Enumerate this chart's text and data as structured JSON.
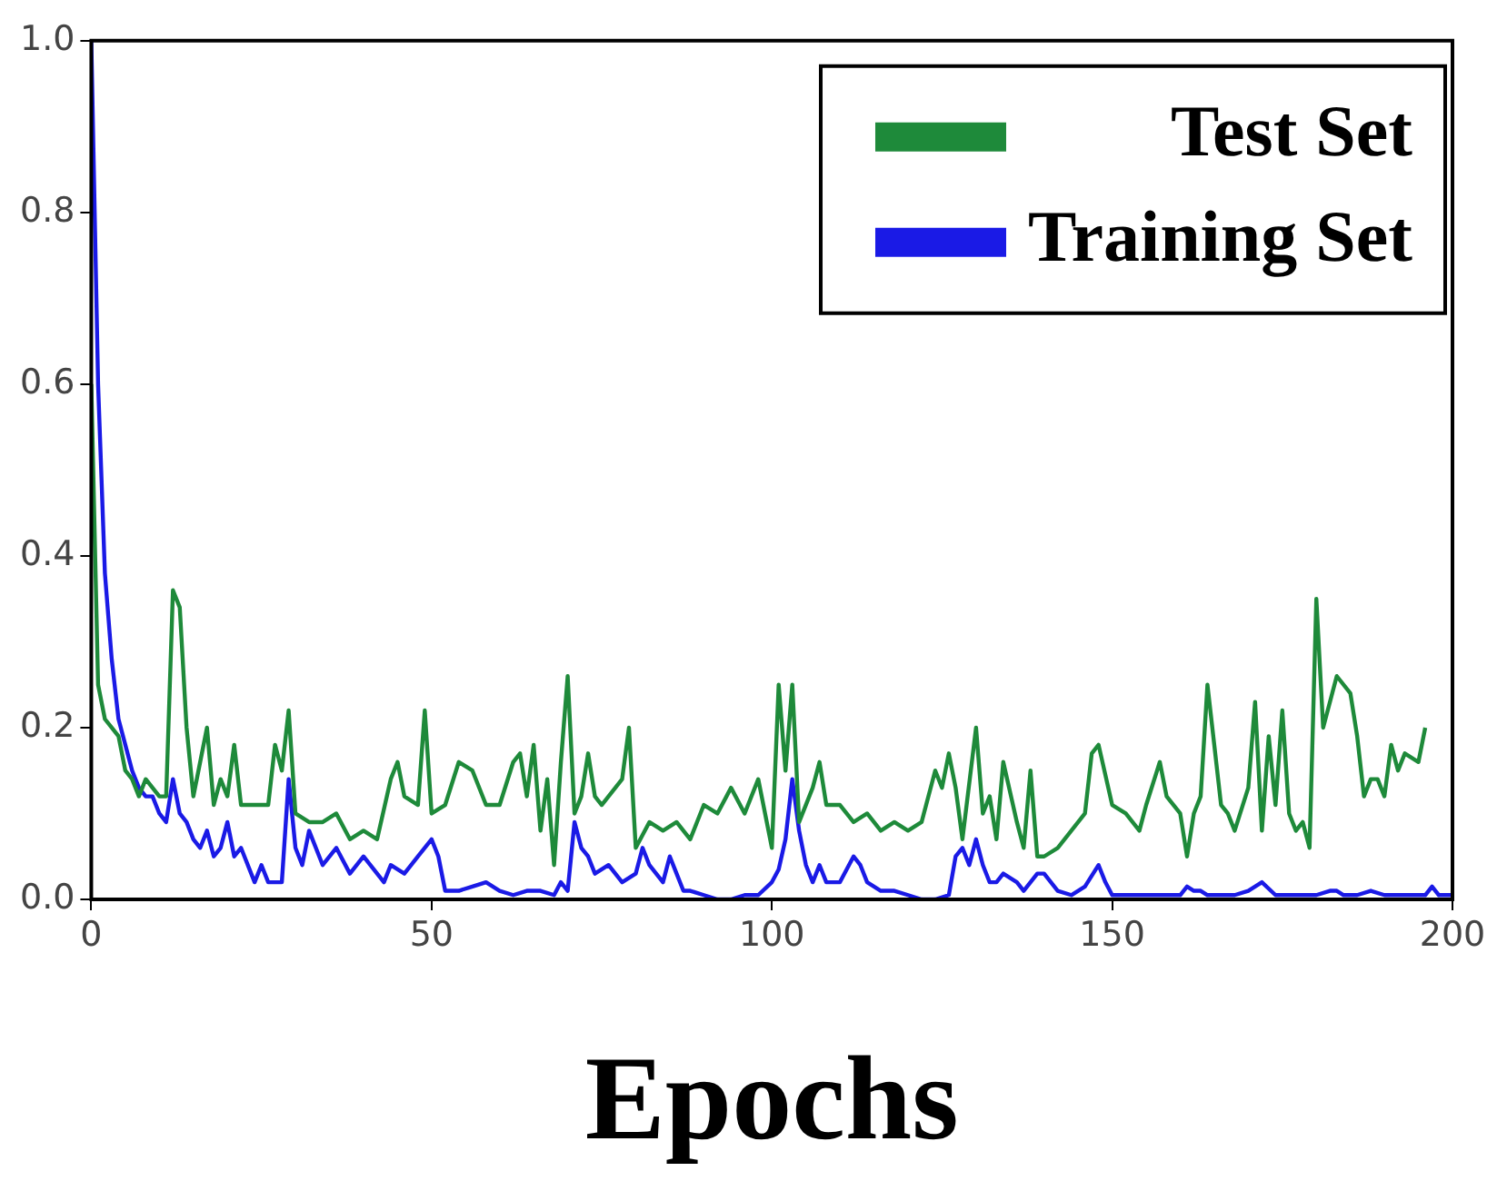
{
  "chart_data": {
    "type": "line",
    "xlabel": "Epochs",
    "xlim": [
      0,
      200
    ],
    "xticks": [
      0,
      50,
      100,
      150,
      200
    ],
    "ylim": [
      0,
      1.0
    ],
    "yticks": [
      {
        "value": 0,
        "label": "0.0"
      },
      {
        "value": 0.2,
        "label": "0.2"
      },
      {
        "value": 0.4,
        "label": "0.4"
      },
      {
        "value": 0.6,
        "label": "0.6"
      },
      {
        "value": 0.8,
        "label": "0.8"
      },
      {
        "value": 1.0,
        "label": "1.0"
      }
    ],
    "grid": false,
    "legend": "top right",
    "marker": "none",
    "line_style": "solid",
    "series": [
      {
        "name": "Test Set",
        "color": "#1e8a3a",
        "x": [
          0,
          1,
          2,
          3,
          4,
          5,
          6,
          7,
          8,
          9,
          10,
          11,
          12,
          13,
          14,
          15,
          16,
          17,
          18,
          19,
          20,
          21,
          22,
          24,
          26,
          27,
          28,
          29,
          30,
          32,
          34,
          36,
          38,
          40,
          42,
          44,
          45,
          46,
          48,
          49,
          50,
          52,
          54,
          56,
          58,
          60,
          62,
          63,
          64,
          65,
          66,
          67,
          68,
          69,
          70,
          71,
          72,
          73,
          74,
          75,
          76,
          78,
          79,
          80,
          82,
          84,
          86,
          88,
          90,
          92,
          94,
          96,
          98,
          100,
          101,
          102,
          103,
          104,
          106,
          107,
          108,
          110,
          112,
          114,
          116,
          118,
          120,
          122,
          124,
          125,
          126,
          127,
          128,
          130,
          131,
          132,
          133,
          134,
          136,
          137,
          138,
          139,
          140,
          142,
          144,
          146,
          147,
          148,
          150,
          152,
          154,
          155,
          157,
          158,
          160,
          161,
          162,
          163,
          164,
          166,
          167,
          168,
          170,
          171,
          172,
          173,
          174,
          175,
          176,
          177,
          178,
          179,
          180,
          181,
          183,
          185,
          186,
          187,
          188,
          189,
          190,
          191,
          192,
          193,
          195,
          196
        ],
        "values": [
          0.6,
          0.25,
          0.21,
          0.2,
          0.19,
          0.15,
          0.14,
          0.12,
          0.14,
          0.13,
          0.12,
          0.12,
          0.36,
          0.34,
          0.2,
          0.12,
          0.16,
          0.2,
          0.11,
          0.14,
          0.12,
          0.18,
          0.11,
          0.11,
          0.11,
          0.18,
          0.15,
          0.22,
          0.1,
          0.09,
          0.09,
          0.1,
          0.07,
          0.08,
          0.07,
          0.14,
          0.16,
          0.12,
          0.11,
          0.22,
          0.1,
          0.11,
          0.16,
          0.15,
          0.11,
          0.11,
          0.16,
          0.17,
          0.12,
          0.18,
          0.08,
          0.14,
          0.04,
          0.16,
          0.26,
          0.1,
          0.12,
          0.17,
          0.12,
          0.11,
          0.12,
          0.14,
          0.2,
          0.06,
          0.09,
          0.08,
          0.09,
          0.07,
          0.11,
          0.1,
          0.13,
          0.1,
          0.14,
          0.06,
          0.25,
          0.15,
          0.25,
          0.09,
          0.13,
          0.16,
          0.11,
          0.11,
          0.09,
          0.1,
          0.08,
          0.09,
          0.08,
          0.09,
          0.15,
          0.13,
          0.17,
          0.13,
          0.07,
          0.2,
          0.1,
          0.12,
          0.07,
          0.16,
          0.09,
          0.06,
          0.15,
          0.05,
          0.05,
          0.06,
          0.08,
          0.1,
          0.17,
          0.18,
          0.11,
          0.1,
          0.08,
          0.11,
          0.16,
          0.12,
          0.1,
          0.05,
          0.1,
          0.12,
          0.25,
          0.11,
          0.1,
          0.08,
          0.13,
          0.23,
          0.08,
          0.19,
          0.11,
          0.22,
          0.1,
          0.08,
          0.09,
          0.06,
          0.35,
          0.2,
          0.26,
          0.24,
          0.19,
          0.12,
          0.14,
          0.14,
          0.12,
          0.18,
          0.15,
          0.17,
          0.16,
          0.2
        ]
      },
      {
        "name": "Training Set",
        "color": "#1a1ae6",
        "x": [
          0,
          1,
          2,
          3,
          4,
          5,
          6,
          7,
          8,
          9,
          10,
          11,
          12,
          13,
          14,
          15,
          16,
          17,
          18,
          19,
          20,
          21,
          22,
          24,
          25,
          26,
          28,
          29,
          30,
          31,
          32,
          34,
          36,
          38,
          40,
          42,
          43,
          44,
          46,
          48,
          50,
          51,
          52,
          54,
          56,
          58,
          60,
          62,
          64,
          66,
          68,
          69,
          70,
          71,
          72,
          73,
          74,
          76,
          78,
          80,
          81,
          82,
          84,
          85,
          86,
          87,
          88,
          90,
          92,
          94,
          96,
          98,
          100,
          101,
          102,
          103,
          104,
          105,
          106,
          107,
          108,
          110,
          112,
          113,
          114,
          116,
          118,
          120,
          122,
          124,
          126,
          127,
          128,
          129,
          130,
          131,
          132,
          133,
          134,
          136,
          137,
          139,
          140,
          142,
          144,
          146,
          148,
          149,
          150,
          152,
          156,
          158,
          160,
          161,
          162,
          163,
          164,
          168,
          170,
          172,
          174,
          180,
          182,
          183,
          184,
          186,
          188,
          190,
          196,
          197,
          198,
          200
        ],
        "values": [
          1.0,
          0.6,
          0.38,
          0.28,
          0.21,
          0.18,
          0.15,
          0.13,
          0.12,
          0.12,
          0.1,
          0.09,
          0.14,
          0.1,
          0.09,
          0.07,
          0.06,
          0.08,
          0.05,
          0.06,
          0.09,
          0.05,
          0.06,
          0.02,
          0.04,
          0.02,
          0.02,
          0.14,
          0.06,
          0.04,
          0.08,
          0.04,
          0.06,
          0.03,
          0.05,
          0.03,
          0.02,
          0.04,
          0.03,
          0.05,
          0.07,
          0.05,
          0.01,
          0.01,
          0.015,
          0.02,
          0.01,
          0.005,
          0.01,
          0.01,
          0.005,
          0.02,
          0.01,
          0.09,
          0.06,
          0.05,
          0.03,
          0.04,
          0.02,
          0.03,
          0.06,
          0.04,
          0.02,
          0.05,
          0.03,
          0.01,
          0.01,
          0.005,
          0,
          0,
          0.005,
          0.005,
          0.02,
          0.035,
          0.07,
          0.14,
          0.08,
          0.04,
          0.02,
          0.04,
          0.02,
          0.02,
          0.05,
          0.04,
          0.02,
          0.01,
          0.01,
          0.005,
          0,
          0,
          0.005,
          0.05,
          0.06,
          0.04,
          0.07,
          0.04,
          0.02,
          0.02,
          0.03,
          0.02,
          0.01,
          0.03,
          0.03,
          0.01,
          0.005,
          0.015,
          0.04,
          0.02,
          0.005,
          0.005,
          0.005,
          0.005,
          0.005,
          0.015,
          0.01,
          0.01,
          0.005,
          0.005,
          0.01,
          0.02,
          0.005,
          0.005,
          0.01,
          0.01,
          0.005,
          0.005,
          0.01,
          0.005,
          0.005,
          0.015,
          0.005,
          0.005
        ]
      }
    ]
  }
}
